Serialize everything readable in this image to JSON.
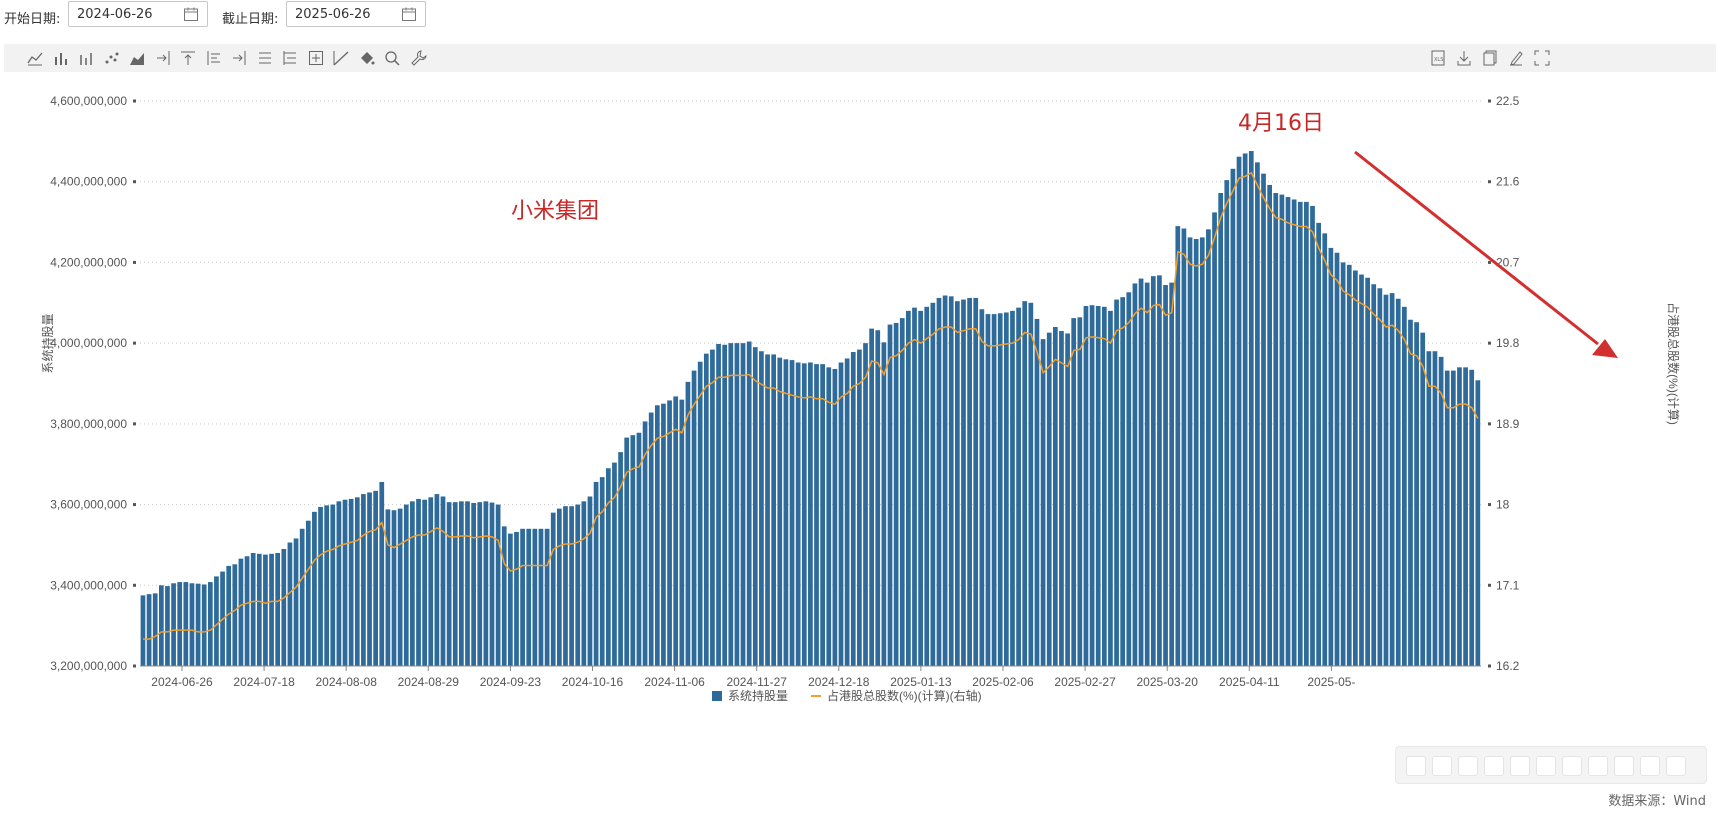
{
  "filters": {
    "start_label": "开始日期:",
    "start_value": "2024-06-26",
    "end_label": "截止日期:",
    "end_value": "2025-06-26"
  },
  "toolbar_icons": [
    "line-chart-icon",
    "bar-chart-icon",
    "stacked-bar-icon",
    "scatter-icon",
    "area-chart-icon",
    "align-right-icon",
    "align-top-icon",
    "align-left-icon",
    "align-right-arrow-icon",
    "list-icon",
    "list-alt-icon",
    "grid-plus-icon",
    "trend-icon",
    "paint-bucket-icon",
    "zoom-icon",
    "wrench-icon"
  ],
  "toolbar_right_icons": [
    "export-xls-icon",
    "download-icon",
    "copy-icon",
    "edit-icon",
    "fullscreen-icon"
  ],
  "annotations": {
    "company": "小米集团",
    "date_note": "4月16日",
    "arrow_color": "#d32f2f"
  },
  "source": "数据来源：Wind",
  "chart_data": {
    "type": "bar",
    "title": "",
    "ylabel_left": "系统持股量",
    "ylabel_right": "占港股总股数(%)(计算)",
    "ylim_left": [
      3200000000,
      4600000000
    ],
    "ylim_right": [
      16.2,
      22.5
    ],
    "yticks_left": [
      "3,200,000,000",
      "3,400,000,000",
      "3,600,000,000",
      "3,800,000,000",
      "4,000,000,000",
      "4,200,000,000",
      "4,400,000,000",
      "4,600,000,000"
    ],
    "yticks_right": [
      "16.2",
      "17.1",
      "18",
      "18.9",
      "19.8",
      "20.7",
      "21.6",
      "22.5"
    ],
    "xticks": [
      "2024-06-26",
      "2024-07-18",
      "2024-08-08",
      "2024-08-29",
      "2024-09-23",
      "2024-10-16",
      "2024-11-06",
      "2024-11-27",
      "2024-12-18",
      "2025-01-13",
      "2025-02-06",
      "2025-02-27",
      "2025-03-20",
      "2025-04-11",
      "2025-05-"
    ],
    "grid": true,
    "legend_position": "bottom",
    "colors": {
      "bar": "#2e6b9a",
      "line": "#f0a030"
    },
    "series": [
      {
        "name": "系统持股量",
        "type": "bar",
        "axis": "left",
        "values": [
          3375,
          3378,
          3380,
          3400,
          3398,
          3405,
          3408,
          3408,
          3405,
          3404,
          3402,
          3408,
          3422,
          3434,
          3448,
          3452,
          3466,
          3472,
          3480,
          3478,
          3476,
          3478,
          3480,
          3490,
          3506,
          3516,
          3540,
          3560,
          3582,
          3594,
          3598,
          3600,
          3608,
          3612,
          3614,
          3618,
          3626,
          3630,
          3634,
          3656,
          3588,
          3586,
          3590,
          3600,
          3608,
          3614,
          3612,
          3618,
          3626,
          3620,
          3606,
          3606,
          3608,
          3608,
          3604,
          3606,
          3608,
          3605,
          3600,
          3546,
          3528,
          3532,
          3540,
          3540,
          3540,
          3540,
          3540,
          3580,
          3590,
          3596,
          3596,
          3600,
          3608,
          3620,
          3656,
          3668,
          3690,
          3704,
          3730,
          3766,
          3772,
          3778,
          3806,
          3828,
          3846,
          3850,
          3858,
          3868,
          3860,
          3904,
          3932,
          3954,
          3974,
          3984,
          3998,
          3996,
          4000,
          4000,
          4000,
          4004,
          3990,
          3980,
          3972,
          3972,
          3964,
          3960,
          3958,
          3952,
          3950,
          3952,
          3948,
          3948,
          3940,
          3936,
          3952,
          3962,
          3978,
          3984,
          4000,
          4036,
          4032,
          4002,
          4046,
          4050,
          4062,
          4080,
          4088,
          4080,
          4090,
          4100,
          4112,
          4118,
          4116,
          4104,
          4108,
          4112,
          4112,
          4084,
          4072,
          4072,
          4074,
          4076,
          4080,
          4088,
          4104,
          4100,
          4060,
          4010,
          4026,
          4040,
          4030,
          4024,
          4062,
          4064,
          4092,
          4094,
          4092,
          4090,
          4080,
          4108,
          4114,
          4126,
          4148,
          4160,
          4150,
          4166,
          4168,
          4144,
          4150,
          4290,
          4284,
          4262,
          4258,
          4262,
          4282,
          4324,
          4372,
          4404,
          4432,
          4462,
          4470,
          4476,
          4448,
          4420,
          4392,
          4372,
          4368,
          4362,
          4356,
          4350,
          4350,
          4340,
          4298,
          4272,
          4236,
          4224,
          4200,
          4194,
          4180,
          4170,
          4162,
          4146,
          4136,
          4120,
          4124,
          4110,
          4090,
          4058,
          4052,
          4026,
          3980,
          3980,
          3966,
          3932,
          3932,
          3940,
          3940,
          3934,
          3908
        ]
      },
      {
        "name": "占港股总股数(%)(计算)(右轴)",
        "type": "line",
        "axis": "right",
        "values": [
          16.5,
          16.5,
          16.53,
          16.58,
          16.58,
          16.6,
          16.6,
          16.6,
          16.6,
          16.58,
          16.58,
          16.6,
          16.66,
          16.72,
          16.78,
          16.82,
          16.88,
          16.9,
          16.92,
          16.92,
          16.9,
          16.92,
          16.92,
          16.96,
          17.02,
          17.08,
          17.18,
          17.28,
          17.38,
          17.44,
          17.48,
          17.5,
          17.54,
          17.56,
          17.58,
          17.6,
          17.66,
          17.7,
          17.72,
          17.8,
          17.55,
          17.52,
          17.56,
          17.6,
          17.64,
          17.66,
          17.66,
          17.7,
          17.74,
          17.7,
          17.64,
          17.64,
          17.65,
          17.65,
          17.63,
          17.64,
          17.65,
          17.64,
          17.6,
          17.34,
          17.26,
          17.28,
          17.32,
          17.32,
          17.32,
          17.32,
          17.32,
          17.5,
          17.54,
          17.56,
          17.56,
          17.58,
          17.62,
          17.68,
          17.86,
          17.92,
          18.02,
          18.08,
          18.2,
          18.36,
          18.4,
          18.42,
          18.56,
          18.66,
          18.74,
          18.76,
          18.8,
          18.84,
          18.8,
          19.0,
          19.12,
          19.22,
          19.32,
          19.36,
          19.42,
          19.42,
          19.44,
          19.44,
          19.44,
          19.45,
          19.38,
          19.34,
          19.3,
          19.3,
          19.26,
          19.24,
          19.22,
          19.2,
          19.19,
          19.2,
          19.18,
          19.18,
          19.14,
          19.12,
          19.2,
          19.24,
          19.32,
          19.35,
          19.42,
          19.6,
          19.58,
          19.45,
          19.64,
          19.66,
          19.72,
          19.8,
          19.84,
          19.8,
          19.85,
          19.9,
          19.96,
          19.98,
          19.98,
          19.92,
          19.94,
          19.96,
          19.96,
          19.82,
          19.77,
          19.77,
          19.78,
          19.79,
          19.8,
          19.84,
          19.92,
          19.9,
          19.7,
          19.47,
          19.54,
          19.62,
          19.58,
          19.54,
          19.72,
          19.73,
          19.86,
          19.87,
          19.86,
          19.85,
          19.8,
          19.94,
          19.97,
          20.03,
          20.13,
          20.19,
          20.14,
          20.22,
          20.23,
          20.11,
          20.14,
          20.82,
          20.79,
          20.68,
          20.66,
          20.68,
          20.78,
          20.98,
          21.2,
          21.36,
          21.5,
          21.64,
          21.66,
          21.7,
          21.56,
          21.42,
          21.3,
          21.2,
          21.18,
          21.14,
          21.12,
          21.1,
          21.1,
          21.04,
          20.86,
          20.72,
          20.56,
          20.5,
          20.38,
          20.34,
          20.28,
          20.24,
          20.2,
          20.12,
          20.06,
          19.98,
          20.0,
          19.94,
          19.84,
          19.68,
          19.66,
          19.54,
          19.32,
          19.32,
          19.24,
          19.08,
          19.08,
          19.12,
          19.12,
          19.08,
          18.96
        ]
      }
    ]
  }
}
